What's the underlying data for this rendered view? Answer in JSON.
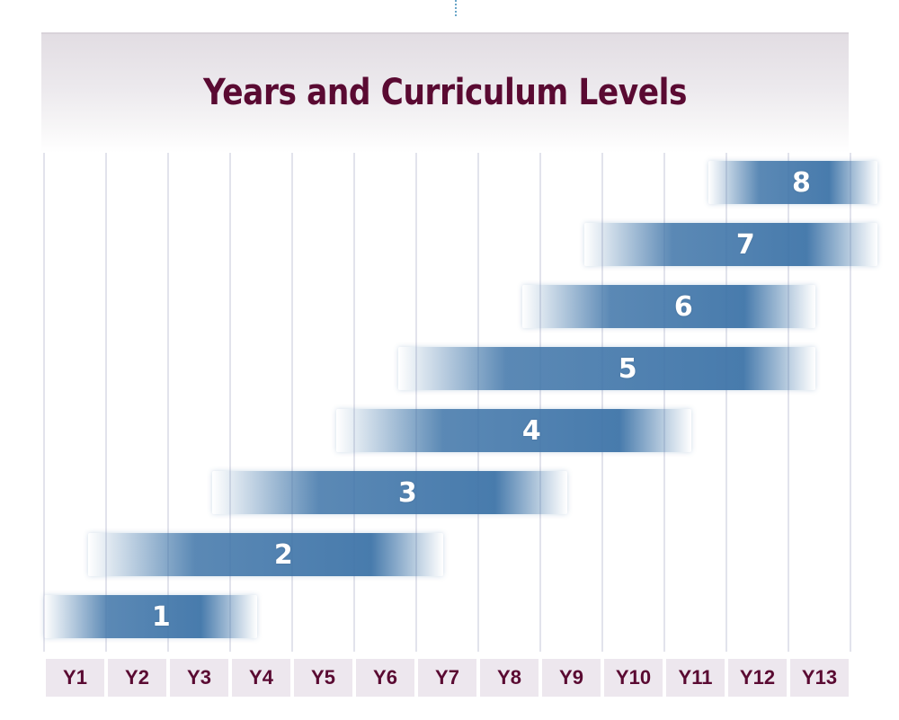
{
  "title": "Years and Curriculum Levels",
  "years": [
    "Y1",
    "Y2",
    "Y3",
    "Y4",
    "Y5",
    "Y6",
    "Y7",
    "Y8",
    "Y9",
    "Y10",
    "Y11",
    "Y12",
    "Y13"
  ],
  "levels": [
    {
      "label": "1",
      "start_year": "Y1",
      "end_year": "Y3"
    },
    {
      "label": "2",
      "start_year": "Y2",
      "end_year": "Y6"
    },
    {
      "label": "3",
      "start_year": "Y4",
      "end_year": "Y8"
    },
    {
      "label": "4",
      "start_year": "Y6",
      "end_year": "Y10"
    },
    {
      "label": "5",
      "start_year": "Y7",
      "end_year": "Y12"
    },
    {
      "label": "6",
      "start_year": "Y9",
      "end_year": "Y12"
    },
    {
      "label": "7",
      "start_year": "Y10",
      "end_year": "Y13"
    },
    {
      "label": "8",
      "start_year": "Y12",
      "end_year": "Y13"
    }
  ],
  "colors": {
    "band": "#3e74a8",
    "title": "#5a0a32",
    "year_label": "#5a0a32",
    "year_cell_bg": "#ede7ee"
  }
}
